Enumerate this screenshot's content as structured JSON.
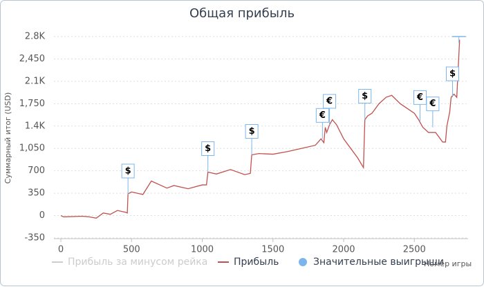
{
  "chart_data": {
    "type": "line",
    "title": "Общая прибыль",
    "x_label": "Номер игры",
    "y_label": "Суммарный итог (USD)",
    "xlim": [
      0,
      2880
    ],
    "ylim": [
      -350,
      2800
    ],
    "xticks": [
      0,
      500,
      1000,
      1500,
      2000,
      2500
    ],
    "yticks": [
      -350,
      0,
      350,
      700,
      {
        "value": 1050,
        "label": "1,050"
      },
      {
        "value": 1400,
        "label": "1.4K"
      },
      {
        "value": 1750,
        "label": "1,750"
      },
      {
        "value": 2100,
        "label": "2.1K"
      },
      {
        "value": 2450,
        "label": "2,450"
      },
      {
        "value": 2800,
        "label": "2.8K"
      }
    ],
    "grid": true,
    "series": [
      {
        "name": "Прибыль за минусом рейка",
        "color": "#cccccc",
        "hidden": true
      },
      {
        "name": "Прибыль",
        "color": "#c0504d",
        "x": [
          0,
          20,
          150,
          200,
          250,
          300,
          350,
          400,
          460,
          470,
          475,
          500,
          580,
          640,
          700,
          750,
          800,
          900,
          1000,
          1030,
          1040,
          1100,
          1200,
          1300,
          1340,
          1350,
          1400,
          1500,
          1600,
          1700,
          1800,
          1840,
          1860,
          1870,
          1880,
          1900,
          1920,
          1950,
          2000,
          2100,
          2140,
          2150,
          2170,
          2200,
          2250,
          2300,
          2340,
          2400,
          2500,
          2530,
          2560,
          2600,
          2650,
          2700,
          2720,
          2730,
          2750,
          2760,
          2780,
          2800,
          2820
        ],
        "values": [
          0,
          -20,
          -10,
          -20,
          -40,
          40,
          20,
          80,
          50,
          40,
          340,
          370,
          330,
          540,
          480,
          430,
          470,
          420,
          480,
          480,
          680,
          650,
          720,
          640,
          660,
          950,
          970,
          960,
          1000,
          1050,
          1100,
          1200,
          1140,
          1380,
          1300,
          1420,
          1500,
          1420,
          1200,
          900,
          750,
          1500,
          1560,
          1600,
          1750,
          1850,
          1880,
          1750,
          1600,
          1500,
          1380,
          1300,
          1300,
          1150,
          1150,
          1400,
          1620,
          1850,
          1900,
          1850,
          2750
        ]
      },
      {
        "name": "Значительные выигрыши",
        "color": "#7cb5ec",
        "type": "flags",
        "x": [
          475,
          1040,
          1350,
          1850,
          1900,
          2150,
          2540,
          2630,
          2770,
          2815
        ],
        "values": [
          330,
          680,
          950,
          1200,
          1420,
          1500,
          1480,
          1380,
          1850,
          2700
        ],
        "labels": [
          "$",
          "$",
          "$",
          "€",
          "€",
          "$",
          "€",
          "€",
          "$",
          null
        ]
      }
    ]
  }
}
